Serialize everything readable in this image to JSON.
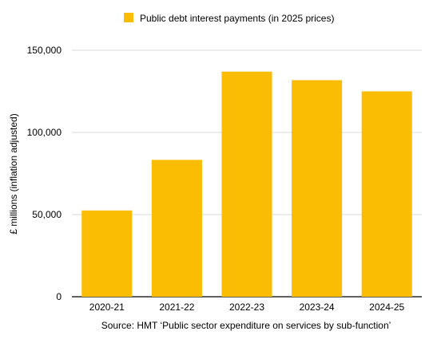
{
  "chart_data": {
    "type": "bar",
    "categories": [
      "2020-21",
      "2021-22",
      "2022-23",
      "2023-24",
      "2024-25"
    ],
    "series": [
      {
        "name": "Public debt interest payments (in 2025 prices)",
        "values": [
          52500,
          83300,
          137000,
          131800,
          125000
        ],
        "color": "#FBBC04"
      }
    ],
    "ylabel": "£ millions (inflation adjusted)",
    "xlabel": "Source: HMT ‘Public sector expenditure on services by sub-function’",
    "ylim": [
      0,
      150000
    ],
    "yticks": [
      0,
      50000,
      100000,
      150000
    ],
    "ytick_labels": [
      "0",
      "50,000",
      "100,000",
      "150,000"
    ],
    "grid": true,
    "gridline_color": "#d9d9d9",
    "legend_position": "top-center"
  }
}
